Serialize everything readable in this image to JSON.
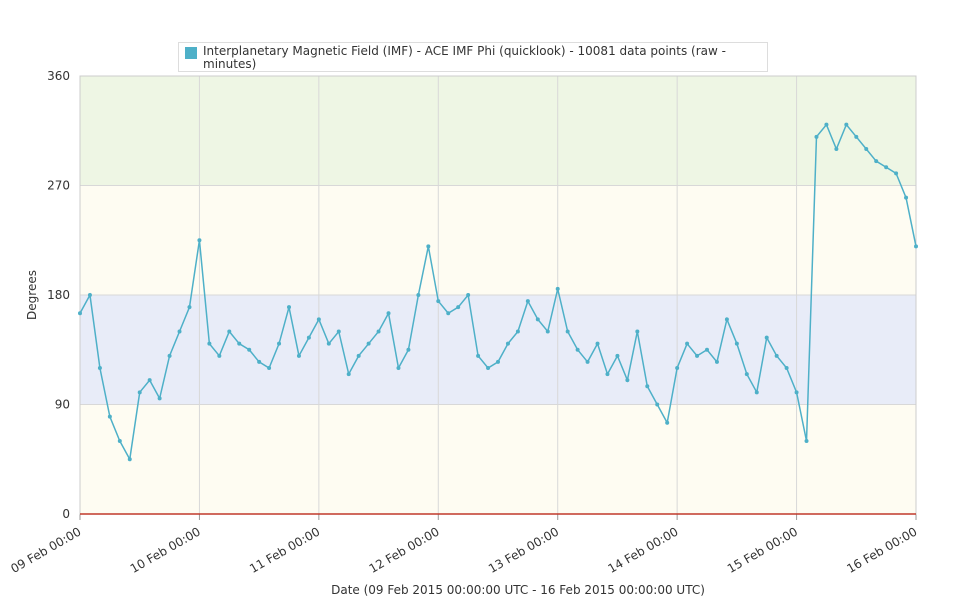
{
  "chart_data": {
    "type": "line",
    "legend": "Interplanetary Magnetic Field (IMF) - ACE IMF Phi (quicklook) - 10081 data points (raw - minutes)",
    "xlabel": "Date (09 Feb 2015 00:00:00 UTC - 16 Feb 2015 00:00:00 UTC)",
    "ylabel": "Degrees",
    "xlim": [
      "09 Feb 00:00",
      "16 Feb 00:00"
    ],
    "xticks": [
      "09 Feb 00:00",
      "10 Feb 00:00",
      "11 Feb 00:00",
      "12 Feb 00:00",
      "13 Feb 00:00",
      "14 Feb 00:00",
      "15 Feb 00:00",
      "16 Feb 00:00"
    ],
    "ylim": [
      0,
      360
    ],
    "yticks": [
      0,
      90,
      180,
      270,
      360
    ],
    "grid": true,
    "plot_bands": [
      {
        "from": 0,
        "to": 90,
        "color": "#fefcf2"
      },
      {
        "from": 90,
        "to": 180,
        "color": "#e8ecf8"
      },
      {
        "from": 180,
        "to": 270,
        "color": "#fefcf2"
      },
      {
        "from": 270,
        "to": 360,
        "color": "#eef6e4"
      }
    ],
    "series": [
      {
        "name": "Interplanetary Magnetic Field (IMF) - ACE IMF Phi (quicklook) - 10081 data points (raw - minutes)",
        "color": "#4eb0c8",
        "x": [
          "09 Feb 00:00",
          "09 Feb 02:00",
          "09 Feb 04:00",
          "09 Feb 06:00",
          "09 Feb 08:00",
          "09 Feb 10:00",
          "09 Feb 12:00",
          "09 Feb 14:00",
          "09 Feb 16:00",
          "09 Feb 18:00",
          "09 Feb 20:00",
          "09 Feb 22:00",
          "10 Feb 00:00",
          "10 Feb 02:00",
          "10 Feb 04:00",
          "10 Feb 06:00",
          "10 Feb 08:00",
          "10 Feb 10:00",
          "10 Feb 12:00",
          "10 Feb 14:00",
          "10 Feb 16:00",
          "10 Feb 18:00",
          "10 Feb 20:00",
          "10 Feb 22:00",
          "11 Feb 00:00",
          "11 Feb 02:00",
          "11 Feb 04:00",
          "11 Feb 06:00",
          "11 Feb 08:00",
          "11 Feb 10:00",
          "11 Feb 12:00",
          "11 Feb 14:00",
          "11 Feb 16:00",
          "11 Feb 18:00",
          "11 Feb 20:00",
          "11 Feb 22:00",
          "12 Feb 00:00",
          "12 Feb 02:00",
          "12 Feb 04:00",
          "12 Feb 06:00",
          "12 Feb 08:00",
          "12 Feb 10:00",
          "12 Feb 12:00",
          "12 Feb 14:00",
          "12 Feb 16:00",
          "12 Feb 18:00",
          "12 Feb 20:00",
          "12 Feb 22:00",
          "13 Feb 00:00",
          "13 Feb 02:00",
          "13 Feb 04:00",
          "13 Feb 06:00",
          "13 Feb 08:00",
          "13 Feb 10:00",
          "13 Feb 12:00",
          "13 Feb 14:00",
          "13 Feb 16:00",
          "13 Feb 18:00",
          "13 Feb 20:00",
          "13 Feb 22:00",
          "14 Feb 00:00",
          "14 Feb 02:00",
          "14 Feb 04:00",
          "14 Feb 06:00",
          "14 Feb 08:00",
          "14 Feb 10:00",
          "14 Feb 12:00",
          "14 Feb 14:00",
          "14 Feb 16:00",
          "14 Feb 18:00",
          "14 Feb 20:00",
          "14 Feb 22:00",
          "15 Feb 00:00",
          "15 Feb 02:00",
          "15 Feb 04:00",
          "15 Feb 06:00",
          "15 Feb 08:00",
          "15 Feb 10:00",
          "15 Feb 12:00",
          "15 Feb 14:00",
          "15 Feb 16:00",
          "15 Feb 18:00",
          "15 Feb 20:00",
          "15 Feb 22:00",
          "16 Feb 00:00"
        ],
        "values": [
          165,
          180,
          120,
          80,
          60,
          45,
          100,
          110,
          95,
          130,
          150,
          170,
          225,
          140,
          130,
          150,
          140,
          135,
          125,
          120,
          140,
          170,
          130,
          145,
          160,
          140,
          150,
          115,
          130,
          140,
          150,
          165,
          120,
          135,
          180,
          220,
          175,
          165,
          170,
          180,
          130,
          120,
          125,
          140,
          150,
          175,
          160,
          150,
          185,
          150,
          135,
          125,
          140,
          115,
          130,
          110,
          150,
          105,
          90,
          75,
          120,
          140,
          130,
          135,
          125,
          160,
          140,
          115,
          100,
          145,
          130,
          120,
          100,
          60,
          310,
          320,
          300,
          320,
          310,
          300,
          290,
          285,
          280,
          260,
          220
        ]
      }
    ]
  }
}
